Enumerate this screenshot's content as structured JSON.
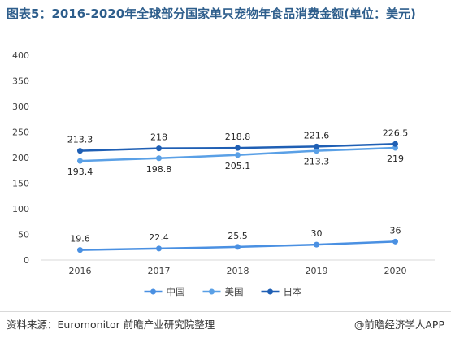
{
  "title_text": "图表5：2016-2020年全球部分国家单只宠物年食品消费金额(单位：美元)",
  "source": "资料来源：Euromonitor 前瞻产业研究院整理",
  "credit": "@前瞻经济学人APP",
  "chart_data": {
    "type": "line",
    "x": [
      "2016",
      "2017",
      "2018",
      "2019",
      "2020"
    ],
    "ylim": [
      0,
      400
    ],
    "yticks": [
      0,
      50,
      100,
      150,
      200,
      250,
      300,
      350,
      400
    ],
    "grid": false,
    "legend_position": "bottom",
    "series": [
      {
        "name": "中国",
        "color": "#4a90e2",
        "values": [
          19.6,
          22.4,
          25.5,
          30,
          36
        ],
        "label_pos": [
          "above",
          "above",
          "above",
          "above",
          "above"
        ]
      },
      {
        "name": "美国",
        "color": "#5aa0e6",
        "values": [
          193.4,
          198.8,
          205.1,
          213.3,
          219
        ],
        "label_pos": [
          "below",
          "below",
          "below",
          "below",
          "below"
        ]
      },
      {
        "name": "日本",
        "color": "#1f5fb4",
        "values": [
          213.3,
          218,
          218.8,
          221.6,
          226.5
        ],
        "label_pos": [
          "above",
          "above",
          "above",
          "above",
          "above"
        ]
      }
    ]
  }
}
